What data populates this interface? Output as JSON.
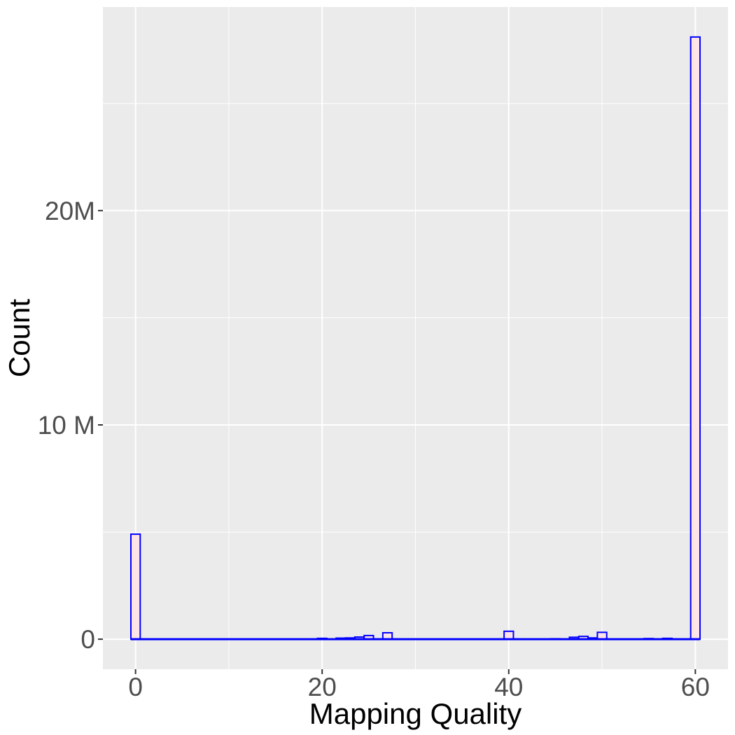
{
  "chart_data": {
    "type": "bar",
    "title": "",
    "xlabel": "Mapping Quality",
    "ylabel": "Count",
    "xlim": [
      -3.5,
      63.5
    ],
    "ylim": [
      -1400000,
      29500000
    ],
    "x_ticks": [
      {
        "value": 0,
        "label": "0"
      },
      {
        "value": 20,
        "label": "20"
      },
      {
        "value": 40,
        "label": "40"
      },
      {
        "value": 60,
        "label": "60"
      }
    ],
    "y_ticks": [
      {
        "value": 0,
        "label": "0"
      },
      {
        "value": 10000000,
        "label": "10 M"
      },
      {
        "value": 20000000,
        "label": "20M"
      }
    ],
    "grid": true,
    "bar_width": 1,
    "x": [
      0,
      20,
      22,
      23,
      24,
      25,
      27,
      40,
      45,
      47,
      48,
      49,
      50,
      55,
      57,
      60
    ],
    "values": [
      4900000,
      40000,
      50000,
      60000,
      100000,
      170000,
      300000,
      370000,
      20000,
      90000,
      130000,
      60000,
      320000,
      30000,
      40000,
      28100000
    ],
    "colors": {
      "panel": "#ebebeb",
      "grid": "#ffffff",
      "bar_fill": "#fde4e6",
      "bar_outline": "#0000ff",
      "tick_text": "#4d4d4d",
      "title_text": "#000000",
      "tick_mark": "#333333"
    }
  }
}
